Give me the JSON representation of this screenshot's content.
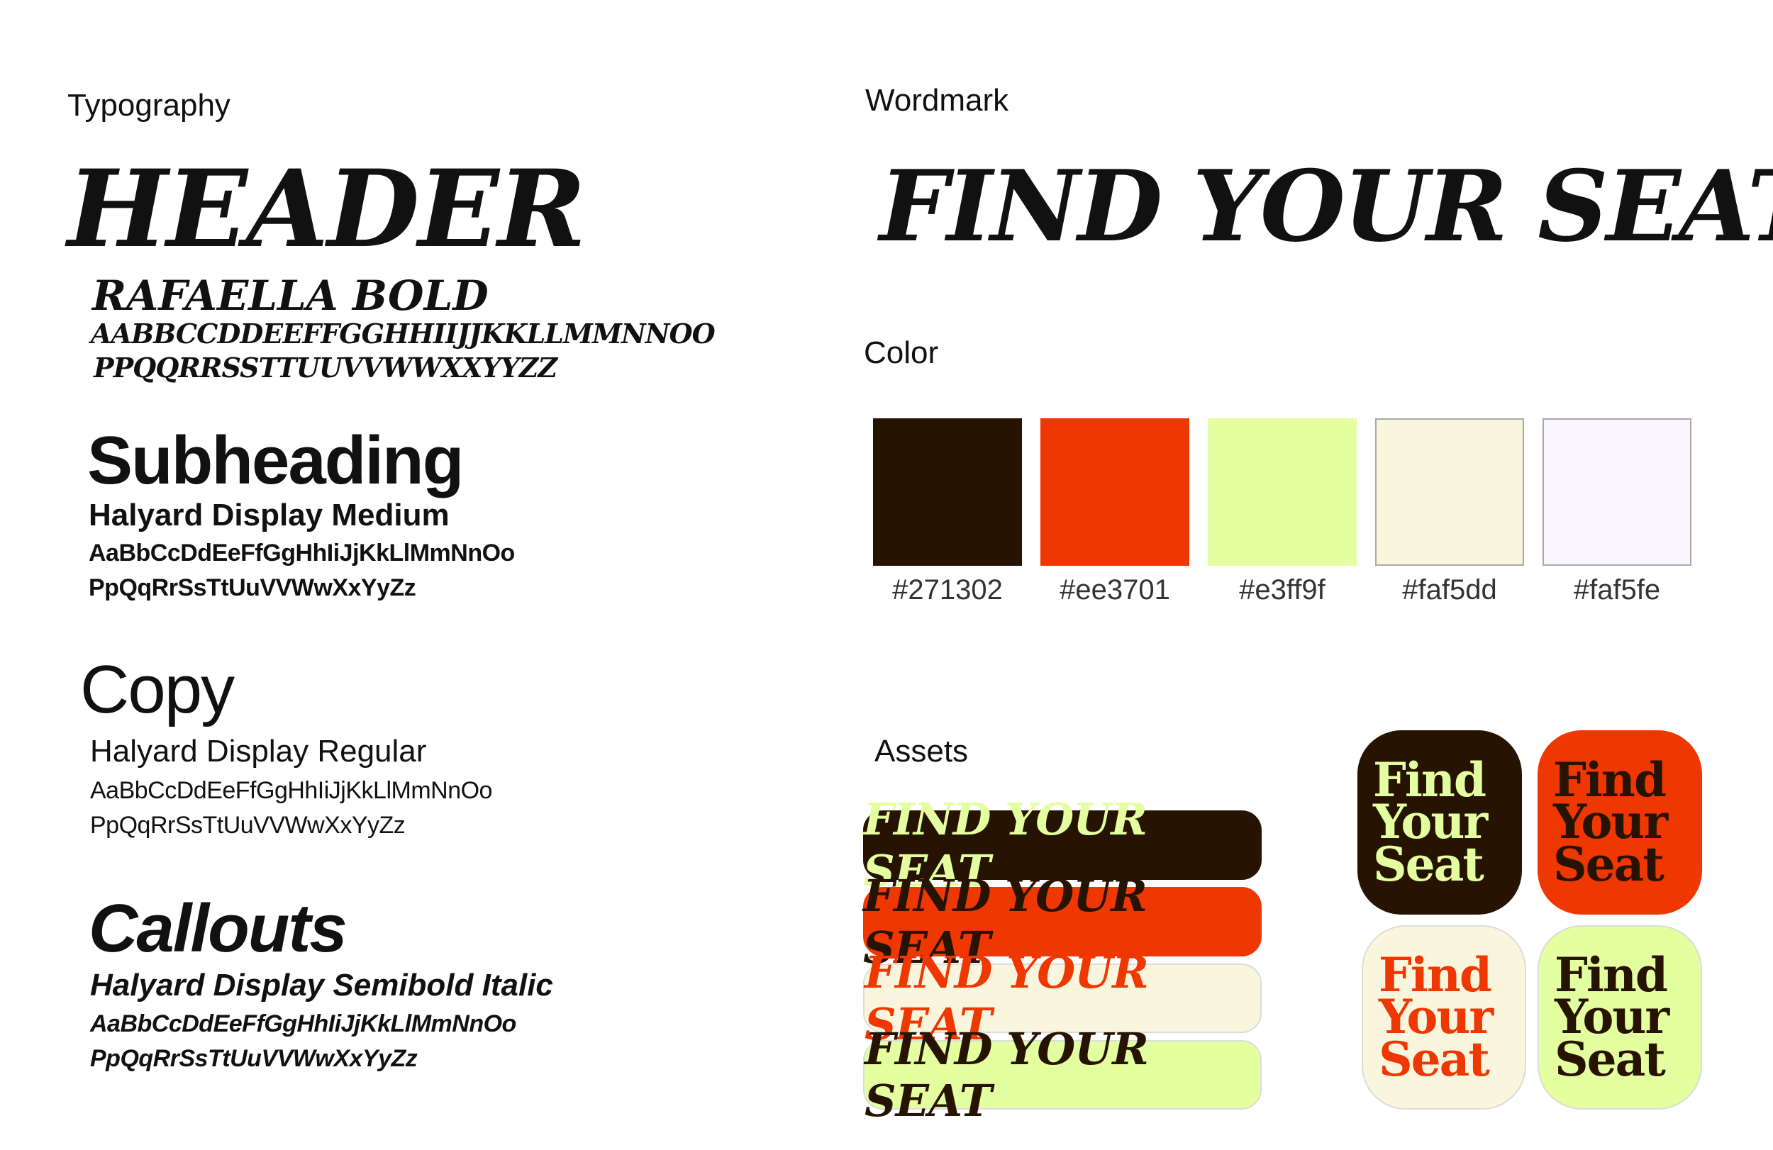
{
  "typography": {
    "label": "Typography",
    "header": {
      "sample": "HEADER",
      "font_name": "RAFAELLA BOLD",
      "alphabet_line1": "AABBCCDDEEFFGGHHIIJJKKLLMMNNOO",
      "alphabet_line2": "PPQQRRSSTTUUVVWWXXYYZZ"
    },
    "subheading": {
      "sample": "Subheading",
      "font_name": "Halyard Display Medium",
      "alphabet_line1": "AaBbCcDdEeFfGgHhIiJjKkLlMmNnOo",
      "alphabet_line2": "PpQqRrSsTtUuVVWwXxYyZz"
    },
    "copy": {
      "sample": "Copy",
      "font_name": "Halyard Display Regular",
      "alphabet_line1": "AaBbCcDdEeFfGgHhIiJjKkLlMmNnOo",
      "alphabet_line2": "PpQqRrSsTtUuVVWwXxYyZz"
    },
    "callouts": {
      "sample": "Callouts",
      "font_name": "Halyard Display Semibold Italic",
      "alphabet_line1": "AaBbCcDdEeFfGgHhIiJjKkLlMmNnOo",
      "alphabet_line2": "PpQqRrSsTtUuVVWwXxYyZz"
    }
  },
  "wordmark": {
    "label": "Wordmark",
    "text": "FIND YOUR SEAT"
  },
  "color": {
    "label": "Color",
    "swatches": [
      {
        "hex": "#271302",
        "label": "#271302"
      },
      {
        "hex": "#ee3701",
        "label": "#ee3701"
      },
      {
        "hex": "#e3ff9f",
        "label": "#e3ff9f"
      },
      {
        "hex": "#faf5dd",
        "label": "#faf5dd"
      },
      {
        "hex": "#faf5fe",
        "label": "#faf5fe"
      }
    ]
  },
  "assets": {
    "label": "Assets",
    "pill_text": "FIND YOUR SEAT",
    "pills": [
      {
        "bg": "#271302",
        "fg": "#e3ff9f"
      },
      {
        "bg": "#ee3701",
        "fg": "#271302"
      },
      {
        "bg": "#faf5dd",
        "fg": "#ee3701"
      },
      {
        "bg": "#e3ff9f",
        "fg": "#271302"
      }
    ],
    "tile_lines": [
      "Find",
      "Your",
      "Seat"
    ],
    "tiles": [
      {
        "bg": "#271302",
        "fg": "#e3ff9f"
      },
      {
        "bg": "#ee3701",
        "fg": "#271302"
      },
      {
        "bg": "#faf5dd",
        "fg": "#ee3701"
      },
      {
        "bg": "#e3ff9f",
        "fg": "#271302"
      }
    ]
  }
}
